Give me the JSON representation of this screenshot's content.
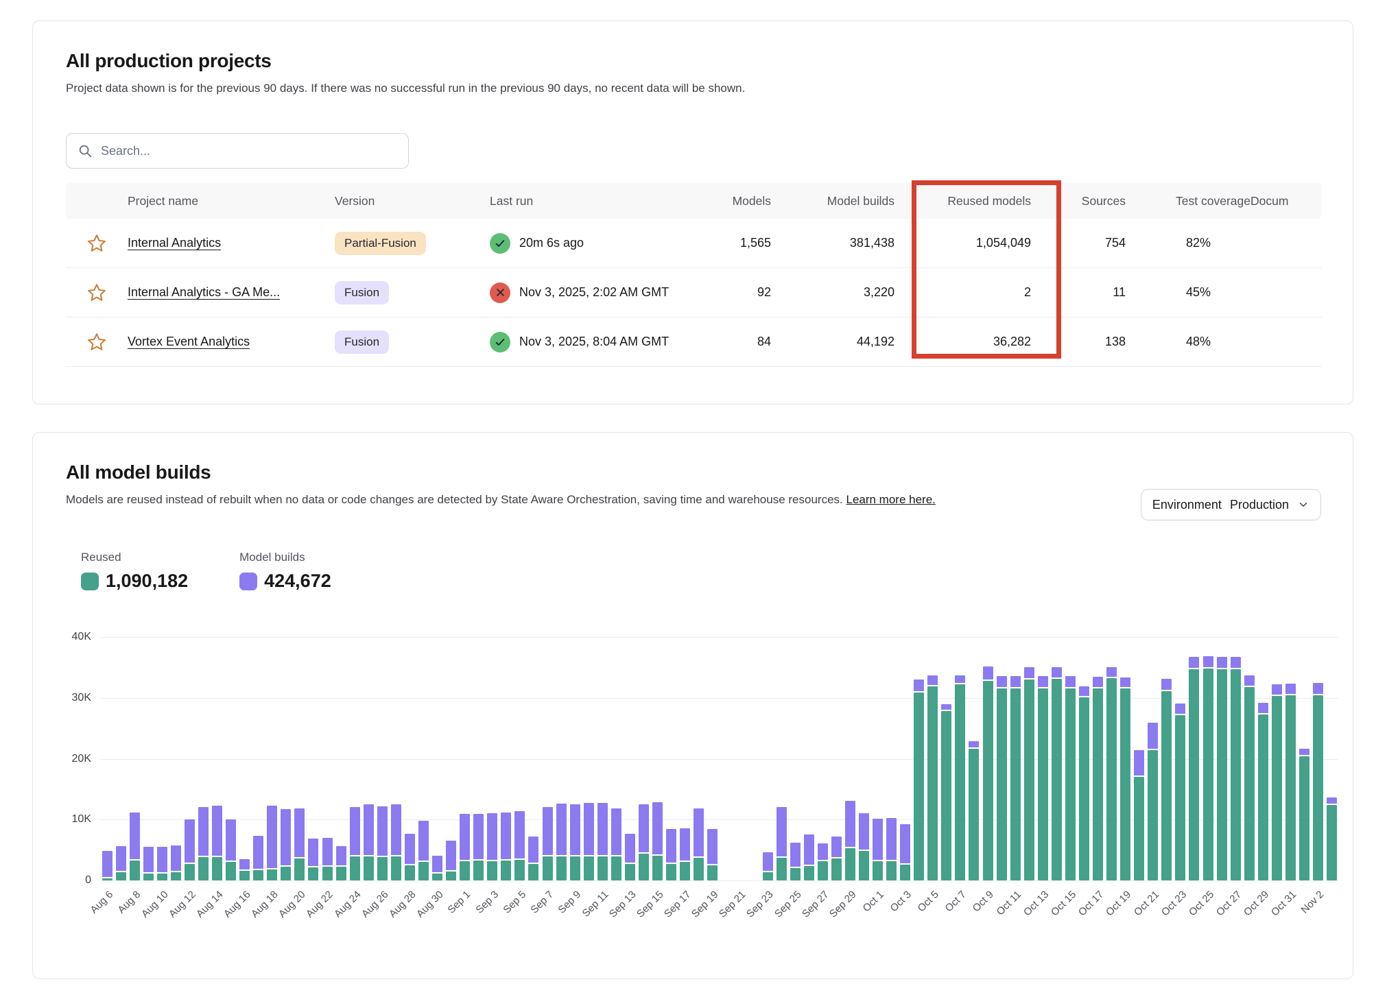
{
  "projects_card": {
    "title": "All production projects",
    "subtitle": "Project data shown is for the previous 90 days. If there was no successful run in the previous 90 days, no recent data will be shown.",
    "search": {
      "placeholder": "Search..."
    },
    "highlight_color": "#d6402c",
    "table": {
      "columns": [
        "",
        "Project name",
        "Version",
        "Last run",
        "Models",
        "Model builds",
        "Reused models",
        "Sources",
        "Test coverage",
        "Docum"
      ],
      "rows": [
        {
          "name": "Internal Analytics",
          "version": "Partial-Fusion",
          "version_style": "peach",
          "status": "success",
          "last_run": "20m 6s ago",
          "models": "1,565",
          "model_builds": "381,438",
          "reused_models": "1,054,049",
          "sources": "754",
          "test_coverage": "82%"
        },
        {
          "name": "Internal Analytics - GA Me...",
          "version": "Fusion",
          "version_style": "lavender",
          "status": "error",
          "last_run": "Nov 3, 2025, 2:02 AM GMT",
          "models": "92",
          "model_builds": "3,220",
          "reused_models": "2",
          "sources": "11",
          "test_coverage": "45%"
        },
        {
          "name": "Vortex Event Analytics",
          "version": "Fusion",
          "version_style": "lavender",
          "status": "success",
          "last_run": "Nov 3, 2025, 8:04 AM GMT",
          "models": "84",
          "model_builds": "44,192",
          "reused_models": "36,282",
          "sources": "138",
          "test_coverage": "48%"
        }
      ]
    }
  },
  "builds_card": {
    "title": "All model builds",
    "subtitle": "Models are reused instead of rebuilt when no data or code changes are detected by State Aware Orchestration, saving time and warehouse resources.",
    "link_label": "Learn more here.",
    "environment_filter": {
      "label": "Environment",
      "value": "Production"
    },
    "legend": [
      {
        "label": "Reused",
        "value": "1,090,182",
        "color": "#45a189"
      },
      {
        "label": "Model builds",
        "value": "424,672",
        "color": "#8c7af0"
      }
    ]
  },
  "chart_data": {
    "type": "bar",
    "stacked": true,
    "title": "All model builds",
    "xlabel": "",
    "ylabel": "",
    "ylim": [
      0,
      40000
    ],
    "yticks": [
      "0",
      "10K",
      "20K",
      "30K",
      "40K"
    ],
    "grid": true,
    "legend_position": "top-left",
    "x_labels_every": 2,
    "x": [
      "Aug 6",
      "Aug 7",
      "Aug 8",
      "Aug 9",
      "Aug 10",
      "Aug 11",
      "Aug 12",
      "Aug 13",
      "Aug 14",
      "Aug 15",
      "Aug 16",
      "Aug 17",
      "Aug 18",
      "Aug 19",
      "Aug 20",
      "Aug 21",
      "Aug 22",
      "Aug 23",
      "Aug 24",
      "Aug 25",
      "Aug 26",
      "Aug 27",
      "Aug 28",
      "Aug 29",
      "Aug 30",
      "Aug 31",
      "Sep 1",
      "Sep 2",
      "Sep 3",
      "Sep 4",
      "Sep 5",
      "Sep 6",
      "Sep 7",
      "Sep 8",
      "Sep 9",
      "Sep 10",
      "Sep 11",
      "Sep 12",
      "Sep 13",
      "Sep 14",
      "Sep 15",
      "Sep 16",
      "Sep 17",
      "Sep 18",
      "Sep 19",
      "Sep 20",
      "Sep 21",
      "Sep 22",
      "Sep 23",
      "Sep 24",
      "Sep 25",
      "Sep 26",
      "Sep 27",
      "Sep 28",
      "Sep 29",
      "Sep 30",
      "Oct 1",
      "Oct 2",
      "Oct 3",
      "Oct 4",
      "Oct 5",
      "Oct 6",
      "Oct 7",
      "Oct 8",
      "Oct 9",
      "Oct 10",
      "Oct 11",
      "Oct 12",
      "Oct 13",
      "Oct 14",
      "Oct 15",
      "Oct 16",
      "Oct 17",
      "Oct 18",
      "Oct 19",
      "Oct 20",
      "Oct 21",
      "Oct 22",
      "Oct 23",
      "Oct 24",
      "Oct 25",
      "Oct 26",
      "Oct 27",
      "Oct 28",
      "Oct 29",
      "Oct 30",
      "Oct 31",
      "Nov 1",
      "Nov 2",
      "Nov 3"
    ],
    "series": [
      {
        "name": "Reused",
        "color": "#45a189",
        "values": [
          300,
          1300,
          3300,
          1100,
          1100,
          1400,
          2700,
          3800,
          3800,
          3000,
          1600,
          1700,
          1800,
          2300,
          3600,
          2100,
          2200,
          2200,
          4000,
          3900,
          3800,
          3900,
          2500,
          3000,
          1100,
          1500,
          3200,
          3300,
          3200,
          3300,
          3400,
          2700,
          4000,
          4000,
          3900,
          4000,
          3900,
          3900,
          2700,
          4400,
          4100,
          2700,
          3000,
          3700,
          2500,
          0,
          0,
          0,
          1300,
          3700,
          2000,
          2400,
          3200,
          3600,
          5300,
          4800,
          3200,
          3200,
          2600,
          30900,
          31900,
          27800,
          32200,
          21600,
          32800,
          31500,
          31500,
          33000,
          31600,
          33100,
          31600,
          30100,
          31500,
          33200,
          31500,
          17000,
          21400,
          31100,
          27200,
          34700,
          34800,
          34700,
          34700,
          31800,
          27300,
          30300,
          30400,
          20400,
          30400,
          12400
        ]
      },
      {
        "name": "Model builds",
        "color": "#8c7af0",
        "values": [
          4600,
          4300,
          7900,
          4400,
          4400,
          4400,
          7300,
          8300,
          8500,
          7000,
          1900,
          5600,
          10500,
          9400,
          8200,
          4800,
          4800,
          3400,
          8100,
          8600,
          8400,
          8600,
          5200,
          6800,
          3000,
          5000,
          7700,
          7600,
          7800,
          7900,
          8000,
          4500,
          8100,
          8600,
          8600,
          8700,
          8800,
          7900,
          5000,
          8100,
          8800,
          5800,
          5600,
          8100,
          5900,
          0,
          0,
          0,
          3300,
          8400,
          4200,
          5100,
          2900,
          3600,
          7800,
          6200,
          6900,
          7100,
          6600,
          2100,
          1800,
          1200,
          1500,
          1300,
          2400,
          2100,
          2100,
          2100,
          2000,
          2000,
          2000,
          1800,
          2000,
          1900,
          1900,
          4400,
          4500,
          2000,
          1900,
          2000,
          2000,
          2000,
          2000,
          1900,
          1900,
          1900,
          1900,
          1200,
          2000,
          1200
        ]
      }
    ]
  }
}
